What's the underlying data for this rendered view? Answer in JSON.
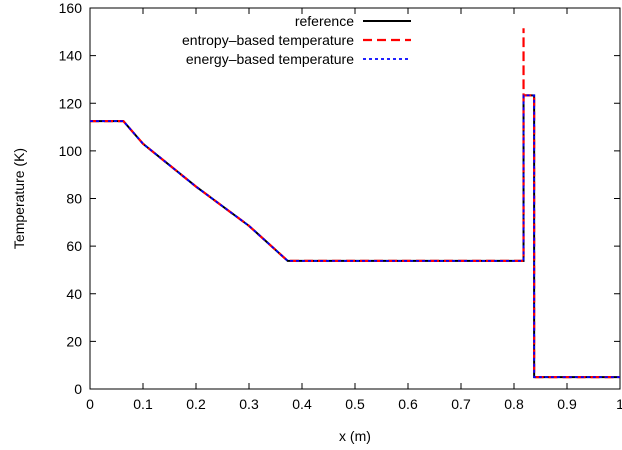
{
  "chart_data": {
    "type": "line",
    "xlabel": "x (m)",
    "ylabel": "Temperature (K)",
    "xlim": [
      0,
      1
    ],
    "ylim": [
      0,
      160
    ],
    "xticks": [
      0,
      0.1,
      0.2,
      0.3,
      0.4,
      0.5,
      0.6,
      0.7,
      0.8,
      0.9,
      1
    ],
    "xtick_labels": [
      "0",
      "0.1",
      "0.2",
      "0.3",
      "0.4",
      "0.5",
      "0.6",
      "0.7",
      "0.8",
      "0.9",
      "1"
    ],
    "yticks": [
      0,
      20,
      40,
      60,
      80,
      100,
      120,
      140,
      160
    ],
    "ytick_labels": [
      "0",
      "20",
      "40",
      "60",
      "80",
      "100",
      "120",
      "140",
      "160"
    ],
    "grid": false,
    "legend_position": "top-right",
    "series": [
      {
        "name": "reference",
        "color": "#000000",
        "style": "solid",
        "points": [
          [
            0,
            112.5
          ],
          [
            0.063,
            112.5
          ],
          [
            0.1,
            103
          ],
          [
            0.2,
            85
          ],
          [
            0.3,
            68.5
          ],
          [
            0.373,
            53.8
          ],
          [
            0.818,
            53.8
          ],
          [
            0.818,
            123.3
          ],
          [
            0.838,
            123.3
          ],
          [
            0.838,
            5
          ],
          [
            1.0,
            5
          ]
        ]
      },
      {
        "name": "entropy–based temperature",
        "color": "#ff0000",
        "style": "dashed",
        "points": [
          [
            0,
            112.5
          ],
          [
            0.063,
            112.5
          ],
          [
            0.1,
            103
          ],
          [
            0.2,
            85
          ],
          [
            0.3,
            68.5
          ],
          [
            0.373,
            53.8
          ],
          [
            0.818,
            53.8
          ],
          [
            0.818,
            151.5
          ],
          [
            0.818,
            123.3
          ],
          [
            0.838,
            123.3
          ],
          [
            0.838,
            5
          ],
          [
            1.0,
            5
          ]
        ]
      },
      {
        "name": "energy–based temperature",
        "color": "#0000ff",
        "style": "dotted",
        "points": [
          [
            0,
            112.5
          ],
          [
            0.063,
            112.5
          ],
          [
            0.1,
            103
          ],
          [
            0.2,
            85
          ],
          [
            0.3,
            68.5
          ],
          [
            0.373,
            53.8
          ],
          [
            0.818,
            53.8
          ],
          [
            0.818,
            123.3
          ],
          [
            0.838,
            123.3
          ],
          [
            0.838,
            5
          ],
          [
            1.0,
            5
          ]
        ]
      }
    ]
  }
}
